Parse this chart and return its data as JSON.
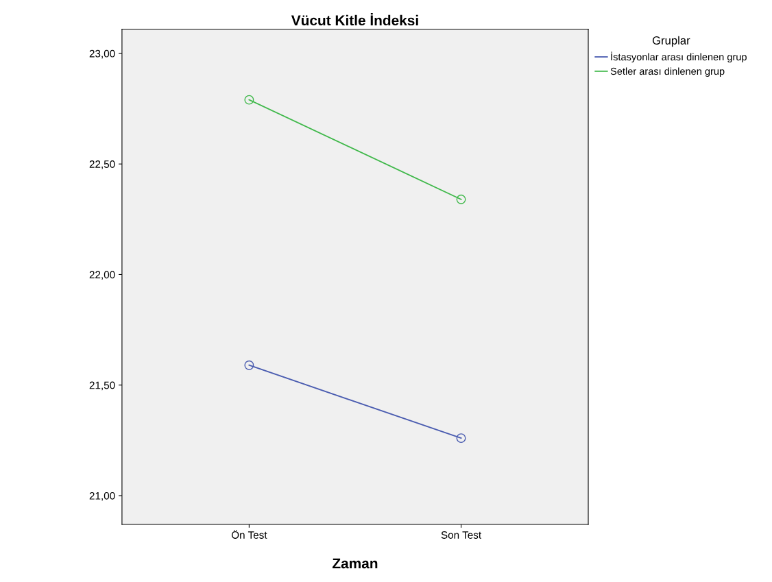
{
  "chart_data": {
    "type": "line",
    "title": "Vücut Kitle İndeksi",
    "xlabel": "Zaman",
    "legend_title": "Gruplar",
    "categories": [
      "Ön Test",
      "Son Test"
    ],
    "series": [
      {
        "name": "İstasyonlar arası dinlenen grup",
        "color": "#4a5cb0",
        "values": [
          21.59,
          21.26
        ]
      },
      {
        "name": "Setler arası dinlenen grup",
        "color": "#3fb84a",
        "values": [
          22.79,
          22.34
        ]
      }
    ],
    "ylim": [
      20.87,
      23.11
    ],
    "yticks": [
      {
        "value": 21,
        "label": "21,00"
      },
      {
        "value": 21.5,
        "label": "21,50"
      },
      {
        "value": 22,
        "label": "22,00"
      },
      {
        "value": 22.5,
        "label": "22,50"
      },
      {
        "value": 23,
        "label": "23,00"
      }
    ],
    "marker": "circle",
    "line_style": "solid",
    "grid": false,
    "legend": "top right"
  }
}
